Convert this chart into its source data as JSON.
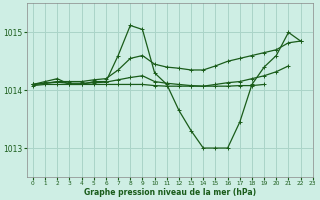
{
  "background_color": "#ceeee4",
  "grid_color": "#aad4c8",
  "line_color": "#1a5c1a",
  "title": "Graphe pression niveau de la mer (hPa)",
  "xlim": [
    -0.5,
    23
  ],
  "ylim": [
    1012.5,
    1015.5
  ],
  "yticks": [
    1013,
    1014,
    1015
  ],
  "xticks": [
    0,
    1,
    2,
    3,
    4,
    5,
    6,
    7,
    8,
    9,
    10,
    11,
    12,
    13,
    14,
    15,
    16,
    17,
    18,
    19,
    20,
    21,
    22,
    23
  ],
  "series": {
    "main": {
      "x": [
        0,
        1,
        2,
        3,
        4,
        5,
        6,
        7,
        8,
        9,
        10,
        11,
        12,
        13,
        14,
        15,
        16,
        17,
        18,
        19,
        20,
        21,
        22
      ],
      "y": [
        1014.1,
        1014.15,
        1014.2,
        1014.1,
        1014.1,
        1014.15,
        1014.15,
        1014.6,
        1015.12,
        1015.05,
        1014.3,
        1014.1,
        1013.65,
        1013.3,
        1013.0,
        1013.0,
        1013.0,
        1013.45,
        1014.1,
        1014.4,
        1014.6,
        1015.0,
        1014.85
      ]
    },
    "upper_diag": {
      "x": [
        0,
        1,
        2,
        3,
        4,
        5,
        6,
        7,
        8,
        9,
        10,
        11,
        12,
        13,
        14,
        15,
        16,
        17,
        18,
        19,
        20,
        21,
        22
      ],
      "y": [
        1014.1,
        1014.12,
        1014.15,
        1014.15,
        1014.15,
        1014.18,
        1014.2,
        1014.35,
        1014.55,
        1014.6,
        1014.45,
        1014.4,
        1014.38,
        1014.35,
        1014.35,
        1014.42,
        1014.5,
        1014.55,
        1014.6,
        1014.65,
        1014.7,
        1014.82,
        1014.85
      ]
    },
    "mid_flat": {
      "x": [
        0,
        1,
        2,
        3,
        4,
        5,
        6,
        7,
        8,
        9,
        10,
        11,
        12,
        13,
        14,
        15,
        16,
        17,
        18,
        19,
        20,
        21
      ],
      "y": [
        1014.1,
        1014.12,
        1014.14,
        1014.12,
        1014.12,
        1014.13,
        1014.14,
        1014.18,
        1014.22,
        1014.25,
        1014.15,
        1014.12,
        1014.1,
        1014.08,
        1014.07,
        1014.1,
        1014.13,
        1014.15,
        1014.2,
        1014.25,
        1014.32,
        1014.42
      ]
    },
    "flat": {
      "x": [
        0,
        1,
        2,
        3,
        4,
        5,
        6,
        7,
        8,
        9,
        10,
        11,
        12,
        13,
        14,
        15,
        16,
        17,
        18,
        19
      ],
      "y": [
        1014.08,
        1014.1,
        1014.1,
        1014.1,
        1014.1,
        1014.1,
        1014.1,
        1014.1,
        1014.1,
        1014.1,
        1014.08,
        1014.07,
        1014.07,
        1014.07,
        1014.07,
        1014.07,
        1014.07,
        1014.08,
        1014.08,
        1014.1
      ]
    }
  }
}
